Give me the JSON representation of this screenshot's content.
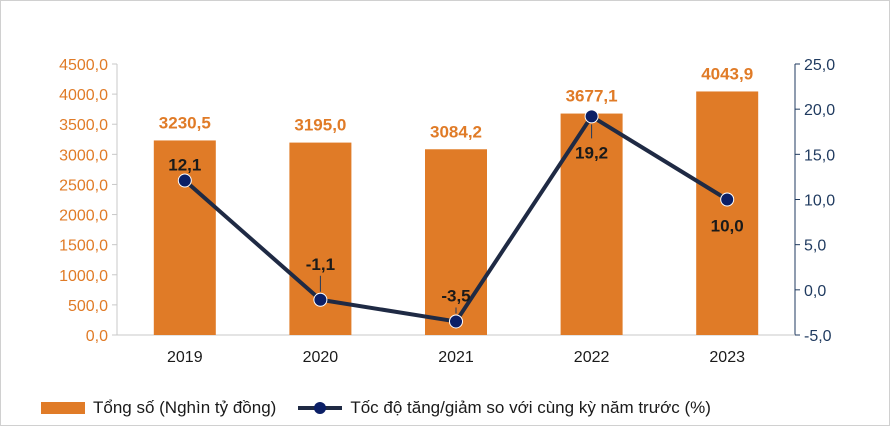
{
  "chart_data": {
    "type": "bar",
    "categories": [
      "2019",
      "2020",
      "2021",
      "2022",
      "2023"
    ],
    "series": [
      {
        "name": "Tổng số (Nghìn tỷ đồng)",
        "type": "bar",
        "axis": "left",
        "color": "#E07B27",
        "values": [
          3230.5,
          3195.0,
          3084.2,
          3677.1,
          4043.9
        ],
        "labels": [
          "3230,5",
          "3195,0",
          "3084,2",
          "3677,1",
          "4043,9"
        ]
      },
      {
        "name": "Tốc độ tăng/giảm so với cùng kỳ năm trước (%)",
        "type": "line",
        "axis": "right",
        "color": "#1F2A44",
        "marker_color": "#0B1F66",
        "values": [
          12.1,
          -1.1,
          -3.5,
          19.2,
          10.0
        ],
        "labels": [
          "12,1",
          "-1,1",
          "-3,5",
          "19,2",
          "10,0"
        ]
      }
    ],
    "y_left": {
      "range": [
        0,
        4500
      ],
      "ticks": [
        "0,0",
        "500,0",
        "1000,0",
        "1500,0",
        "2000,0",
        "2500,0",
        "3000,0",
        "3500,0",
        "4000,0",
        "4500,0"
      ],
      "color": "#E07B27"
    },
    "y_right": {
      "range": [
        -5,
        25
      ],
      "ticks": [
        "-5,0",
        "0,0",
        "5,0",
        "10,0",
        "15,0",
        "20,0",
        "25,0"
      ],
      "color": "#1F3A5F"
    },
    "grid": false,
    "legend": "bottom"
  }
}
